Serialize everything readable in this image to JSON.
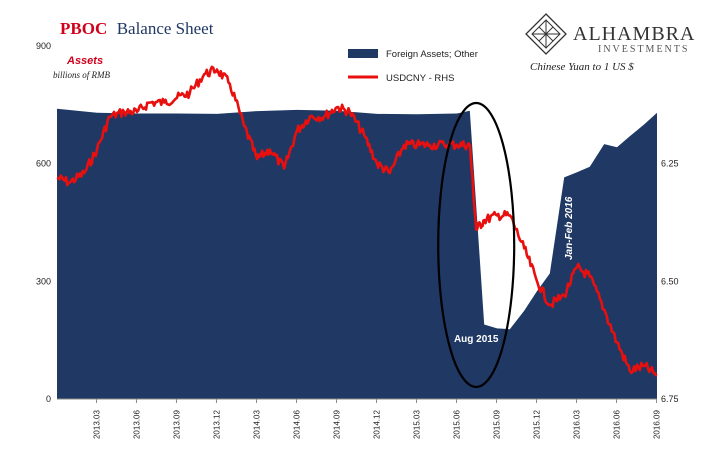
{
  "title": {
    "red_part": "PBOC",
    "blue_part": "Balance Sheet"
  },
  "logo": {
    "main": "ALHAMBRA",
    "sub": "INVESTMENTS"
  },
  "captions": {
    "assets": "Assets",
    "units": "billions of RMB",
    "rhs": "Chinese Yuan to 1 US $"
  },
  "colors": {
    "area": "#1f3864",
    "line": "#e8100f",
    "ellipse": "#000000"
  },
  "chart_data": {
    "type": "area",
    "x_tick_labels": [
      "2013.03",
      "2013.06",
      "2013.09",
      "2013.12",
      "2014.03",
      "2014.06",
      "2014.09",
      "2014.12",
      "2015.03",
      "2015.06",
      "2015.09",
      "2015.12",
      "2016.03",
      "2016.06",
      "2016.09"
    ],
    "left_axis": {
      "ticks": [
        "900",
        "600",
        "300",
        "0"
      ],
      "ylim": [
        0,
        900
      ]
    },
    "right_axis": {
      "ticks": [
        "6.25",
        "6.50",
        "6.75"
      ],
      "ylim": [
        6.0,
        6.75
      ],
      "inverted": true
    },
    "series": [
      {
        "name": "Foreign Assets; Other",
        "axis": "left",
        "type": "area",
        "points": [
          [
            2013.0,
            740
          ],
          [
            2013.25,
            730
          ],
          [
            2013.5,
            728
          ],
          [
            2013.75,
            728
          ],
          [
            2014.0,
            727
          ],
          [
            2014.25,
            734
          ],
          [
            2014.5,
            737
          ],
          [
            2014.75,
            735
          ],
          [
            2015.0,
            727
          ],
          [
            2015.25,
            726
          ],
          [
            2015.5,
            728
          ],
          [
            2015.58,
            735
          ],
          [
            2015.67,
            190
          ],
          [
            2015.75,
            180
          ],
          [
            2015.83,
            178
          ],
          [
            2015.92,
            225
          ],
          [
            2016.0,
            275
          ],
          [
            2016.08,
            320
          ],
          [
            2016.17,
            565
          ],
          [
            2016.25,
            578
          ],
          [
            2016.33,
            592
          ],
          [
            2016.42,
            650
          ],
          [
            2016.5,
            642
          ],
          [
            2016.58,
            670
          ],
          [
            2016.67,
            700
          ],
          [
            2016.75,
            730
          ]
        ]
      },
      {
        "name": "USDCNY - RHS",
        "axis": "right",
        "type": "line",
        "points": [
          [
            2013.0,
            6.28
          ],
          [
            2013.08,
            6.29
          ],
          [
            2013.17,
            6.27
          ],
          [
            2013.25,
            6.22
          ],
          [
            2013.33,
            6.15
          ],
          [
            2013.42,
            6.14
          ],
          [
            2013.5,
            6.14
          ],
          [
            2013.58,
            6.12
          ],
          [
            2013.67,
            6.12
          ],
          [
            2013.75,
            6.11
          ],
          [
            2013.83,
            6.1
          ],
          [
            2013.92,
            6.06
          ],
          [
            2014.0,
            6.05
          ],
          [
            2014.08,
            6.08
          ],
          [
            2014.17,
            6.17
          ],
          [
            2014.25,
            6.24
          ],
          [
            2014.33,
            6.22
          ],
          [
            2014.42,
            6.26
          ],
          [
            2014.5,
            6.18
          ],
          [
            2014.58,
            6.15
          ],
          [
            2014.67,
            6.15
          ],
          [
            2014.75,
            6.13
          ],
          [
            2014.83,
            6.14
          ],
          [
            2014.92,
            6.19
          ],
          [
            2015.0,
            6.25
          ],
          [
            2015.08,
            6.27
          ],
          [
            2015.17,
            6.21
          ],
          [
            2015.25,
            6.21
          ],
          [
            2015.33,
            6.21
          ],
          [
            2015.42,
            6.21
          ],
          [
            2015.5,
            6.21
          ],
          [
            2015.58,
            6.21
          ],
          [
            2015.62,
            6.39
          ],
          [
            2015.67,
            6.37
          ],
          [
            2015.75,
            6.36
          ],
          [
            2015.83,
            6.36
          ],
          [
            2015.92,
            6.43
          ],
          [
            2016.0,
            6.5
          ],
          [
            2016.08,
            6.55
          ],
          [
            2016.17,
            6.53
          ],
          [
            2016.25,
            6.47
          ],
          [
            2016.33,
            6.49
          ],
          [
            2016.42,
            6.56
          ],
          [
            2016.5,
            6.63
          ],
          [
            2016.58,
            6.69
          ],
          [
            2016.67,
            6.68
          ],
          [
            2016.75,
            6.7
          ]
        ]
      }
    ],
    "annotations": [
      "Aug 2015",
      "Jan-Feb 2016"
    ]
  },
  "legend": {
    "items": [
      "Foreign Assets; Other",
      "USDCNY - RHS"
    ],
    "placement": "top-center"
  }
}
